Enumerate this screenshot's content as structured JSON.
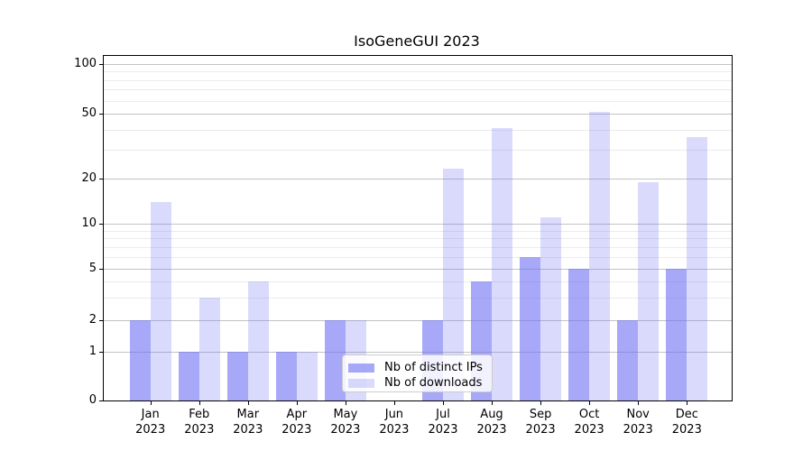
{
  "title": "IsoGeneGUI 2023",
  "chart_data": {
    "type": "bar",
    "title": "IsoGeneGUI 2023",
    "categories": [
      "Jan",
      "Feb",
      "Mar",
      "Apr",
      "May",
      "Jun",
      "Jul",
      "Aug",
      "Sep",
      "Oct",
      "Nov",
      "Dec"
    ],
    "x_year_label": "2023",
    "series": [
      {
        "name": "Nb of distinct IPs",
        "color": "rgba(108,112,243,0.6)",
        "values": [
          2,
          1,
          1,
          1,
          2,
          0,
          2,
          4,
          6,
          5,
          2,
          5
        ]
      },
      {
        "name": "Nb of downloads",
        "color": "rgba(108,112,243,0.25)",
        "values": [
          14,
          3,
          4,
          1,
          2,
          0,
          23,
          41,
          11,
          51,
          19,
          36
        ]
      }
    ],
    "xlabel": "",
    "ylabel": "",
    "yscale": "symlog",
    "y_ticks": [
      0,
      1,
      2,
      5,
      10,
      20,
      50,
      100
    ],
    "y_minor_ticks": [
      3,
      4,
      6,
      7,
      8,
      9,
      30,
      40,
      60,
      70,
      80,
      90
    ],
    "ylim": [
      0,
      112
    ],
    "grid": true,
    "legend_position": "lower center"
  }
}
